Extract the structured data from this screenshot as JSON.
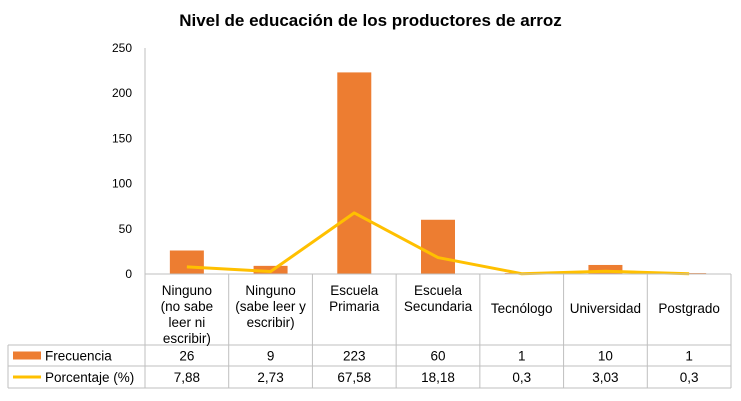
{
  "chart_data": {
    "type": "bar",
    "title": "Nivel de educación de los productores de arroz",
    "categories": [
      [
        "Ninguno",
        "(no sabe",
        "leer ni",
        "escribir)"
      ],
      [
        "Ninguno",
        "(sabe leer y",
        "escribir)"
      ],
      [
        "Escuela",
        "Primaria"
      ],
      [
        "Escuela",
        "Secundaria"
      ],
      [
        "Tecnólogo"
      ],
      [
        "Universidad"
      ],
      [
        "Postgrado"
      ]
    ],
    "yticks": [
      "0",
      "50",
      "100",
      "150",
      "200",
      "250"
    ],
    "ylim": [
      0,
      250
    ],
    "grid": false,
    "legend": "data-table",
    "series": [
      {
        "name": "Frecuencia",
        "kind": "bar",
        "color": "#ED7D31",
        "values": [
          26,
          9,
          223,
          60,
          1,
          10,
          1
        ],
        "labels": [
          "26",
          "9",
          "223",
          "60",
          "1",
          "10",
          "1"
        ]
      },
      {
        "name": "Porcentaje (%)",
        "kind": "line",
        "color": "#FFC000",
        "values": [
          7.88,
          2.73,
          67.58,
          18.18,
          0.3,
          3.03,
          0.3
        ],
        "labels": [
          "7,88",
          "2,73",
          "67,58",
          "18,18",
          "0,3",
          "3,03",
          "0,3"
        ]
      }
    ]
  }
}
